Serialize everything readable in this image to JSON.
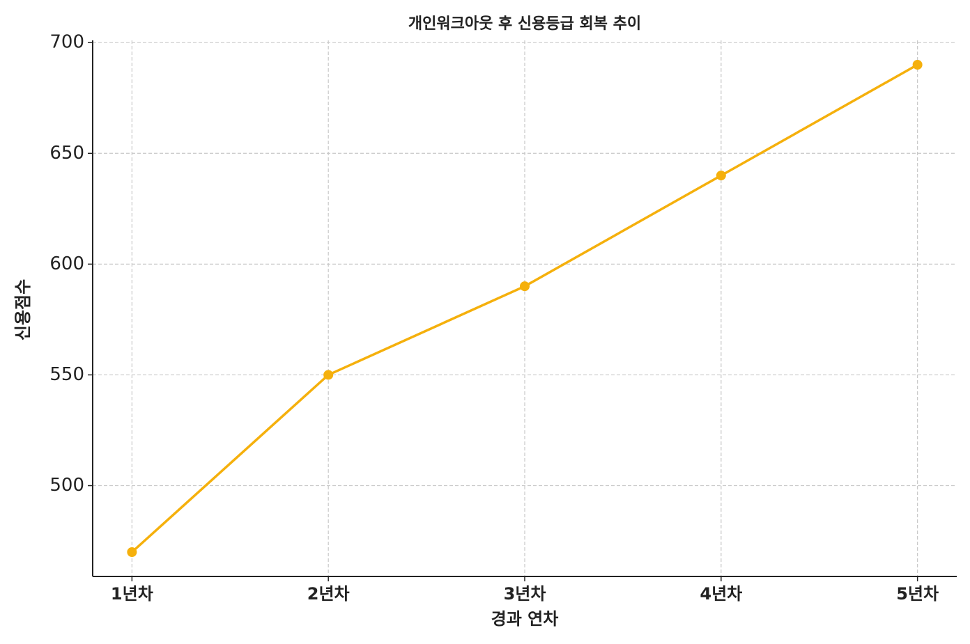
{
  "chart_data": {
    "type": "line",
    "title": "개인워크아웃 후 신용등급 회복 추이",
    "x_label": "경과 연차",
    "y_label": "신용점수",
    "categories": [
      "1년차",
      "2년차",
      "3년차",
      "4년차",
      "5년차"
    ],
    "series": [
      {
        "name": "신용점수",
        "color": "#f5b00c",
        "values": [
          470,
          550,
          590,
          640,
          690
        ]
      }
    ],
    "ylim": [
      459,
      701
    ],
    "yticks": [
      500,
      550,
      600,
      650,
      700
    ],
    "grid": true
  }
}
